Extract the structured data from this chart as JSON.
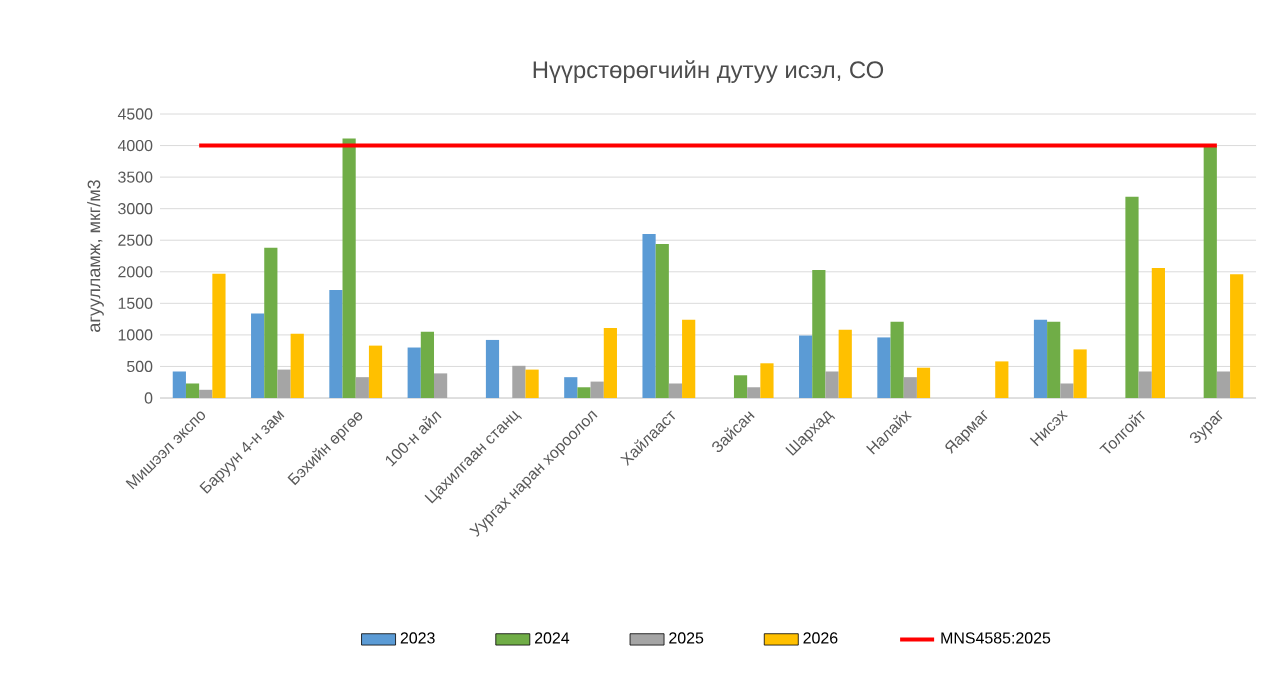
{
  "chart_data": {
    "type": "bar",
    "title": "Нүүрстөрөгчийн дутуу исэл, СО",
    "ylabel": "агуулламж, мкг/м3",
    "categories": [
      "Мишээл экспо",
      "Баруун 4-н зам",
      "Бэхийн өргөө",
      "100-н айл",
      "Цахилгаан станц",
      "Уургах наран хороолол",
      "Хайлааст",
      "Зайсан",
      "Шархад",
      "Налайх",
      "Яармаг",
      "Нисэх",
      "Толгойт",
      "Зураг"
    ],
    "series": [
      {
        "name": "2023",
        "color": "#5b9bd5",
        "values": [
          420,
          1340,
          1710,
          800,
          920,
          330,
          2600,
          null,
          990,
          960,
          null,
          1240,
          null,
          null
        ]
      },
      {
        "name": "2024",
        "color": "#70ad47",
        "values": [
          230,
          2380,
          4110,
          1050,
          null,
          170,
          2440,
          360,
          2030,
          1210,
          null,
          1210,
          3190,
          3990
        ]
      },
      {
        "name": "2025",
        "color": "#a5a5a5",
        "values": [
          130,
          450,
          330,
          390,
          510,
          260,
          230,
          170,
          420,
          330,
          null,
          230,
          420,
          420
        ]
      },
      {
        "name": "2026",
        "color": "#ffc000",
        "values": [
          1970,
          1020,
          830,
          null,
          450,
          1110,
          1240,
          550,
          1080,
          480,
          580,
          770,
          2060,
          1960
        ]
      },
      {
        "name": "MNS4585:2025",
        "type": "line",
        "color": "#ff0000",
        "values": [
          4000,
          4000,
          4000,
          4000,
          4000,
          4000,
          4000,
          4000,
          4000,
          4000,
          4000,
          4000,
          4000,
          4000
        ]
      }
    ],
    "ylim": [
      0,
      4500
    ],
    "yticks": [
      0,
      500,
      1000,
      1500,
      2000,
      2500,
      3000,
      3500,
      4000,
      4500
    ],
    "grid": "y",
    "legend": "bottom"
  }
}
